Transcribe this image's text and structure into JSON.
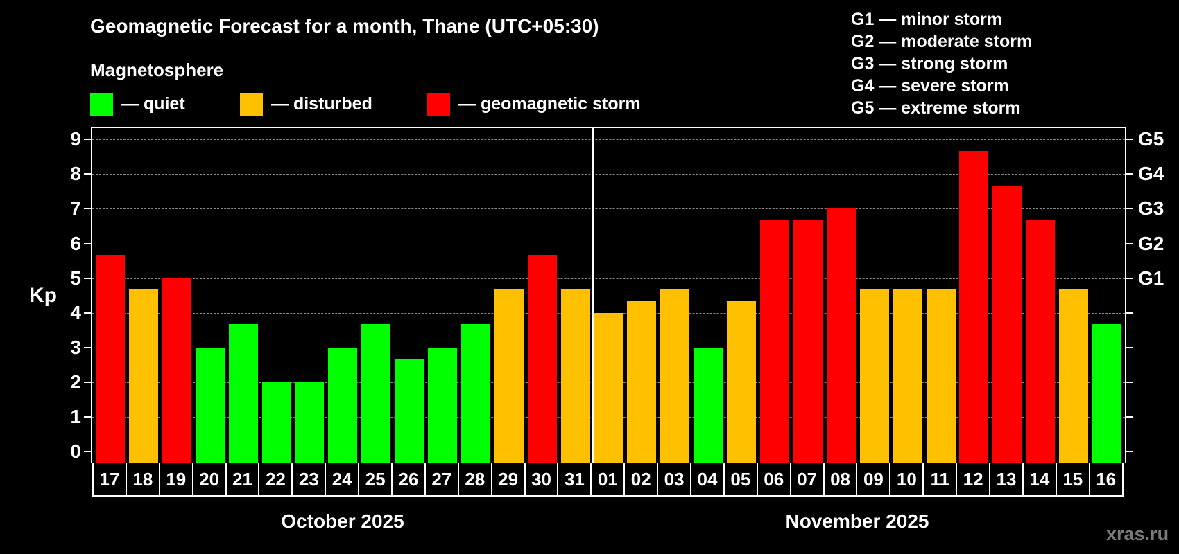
{
  "header": {
    "title": "Geomagnetic Forecast for a month, Thane (UTC+05:30)",
    "subtitle": "Magnetosphere"
  },
  "legend": [
    {
      "label": "— quiet",
      "color": "#00ff00"
    },
    {
      "label": "— disturbed",
      "color": "#ffc000"
    },
    {
      "label": "— geomagnetic storm",
      "color": "#ff0000"
    }
  ],
  "storm_scale": [
    "G1 — minor storm",
    "G2 — moderate storm",
    "G3 — strong storm",
    "G4 — severe storm",
    "G5 — extreme storm"
  ],
  "axis": {
    "y_label": "Kp",
    "y_ticks": [
      "0",
      "1",
      "2",
      "3",
      "4",
      "5",
      "6",
      "7",
      "8",
      "9"
    ],
    "right_ticks": [
      {
        "label": "G1",
        "kp": 5
      },
      {
        "label": "G2",
        "kp": 6
      },
      {
        "label": "G3",
        "kp": 7
      },
      {
        "label": "G4",
        "kp": 8
      },
      {
        "label": "G5",
        "kp": 9
      }
    ],
    "months": [
      "October 2025",
      "November 2025"
    ]
  },
  "watermark": "xras.ru",
  "colors": {
    "quiet": "#00ff00",
    "disturbed": "#ffc000",
    "storm": "#ff0000"
  },
  "chart_data": {
    "type": "bar",
    "title": "Geomagnetic Forecast for a month, Thane (UTC+05:30)",
    "xlabel": "October 2025 / November 2025",
    "ylabel": "Kp",
    "ylim": [
      0,
      9
    ],
    "grid": true,
    "categories": [
      "17",
      "18",
      "19",
      "20",
      "21",
      "22",
      "23",
      "24",
      "25",
      "26",
      "27",
      "28",
      "29",
      "30",
      "31",
      "01",
      "02",
      "03",
      "04",
      "05",
      "06",
      "07",
      "08",
      "09",
      "10",
      "11",
      "12",
      "13",
      "14",
      "15",
      "16"
    ],
    "values": [
      5.67,
      4.67,
      5,
      3,
      3.67,
      2,
      2,
      3,
      3.67,
      2.67,
      3,
      3.67,
      4.67,
      5.67,
      4.67,
      4,
      4.33,
      4.67,
      3,
      4.33,
      6.67,
      6.67,
      7,
      4.67,
      4.67,
      4.67,
      8.67,
      7.67,
      6.67,
      4.67,
      3.67
    ],
    "status": [
      "storm",
      "disturbed",
      "storm",
      "quiet",
      "quiet",
      "quiet",
      "quiet",
      "quiet",
      "quiet",
      "quiet",
      "quiet",
      "quiet",
      "disturbed",
      "storm",
      "disturbed",
      "disturbed",
      "disturbed",
      "disturbed",
      "quiet",
      "disturbed",
      "storm",
      "storm",
      "storm",
      "disturbed",
      "disturbed",
      "disturbed",
      "storm",
      "storm",
      "storm",
      "disturbed",
      "quiet"
    ],
    "legend": [
      "quiet",
      "disturbed",
      "geomagnetic storm"
    ]
  }
}
